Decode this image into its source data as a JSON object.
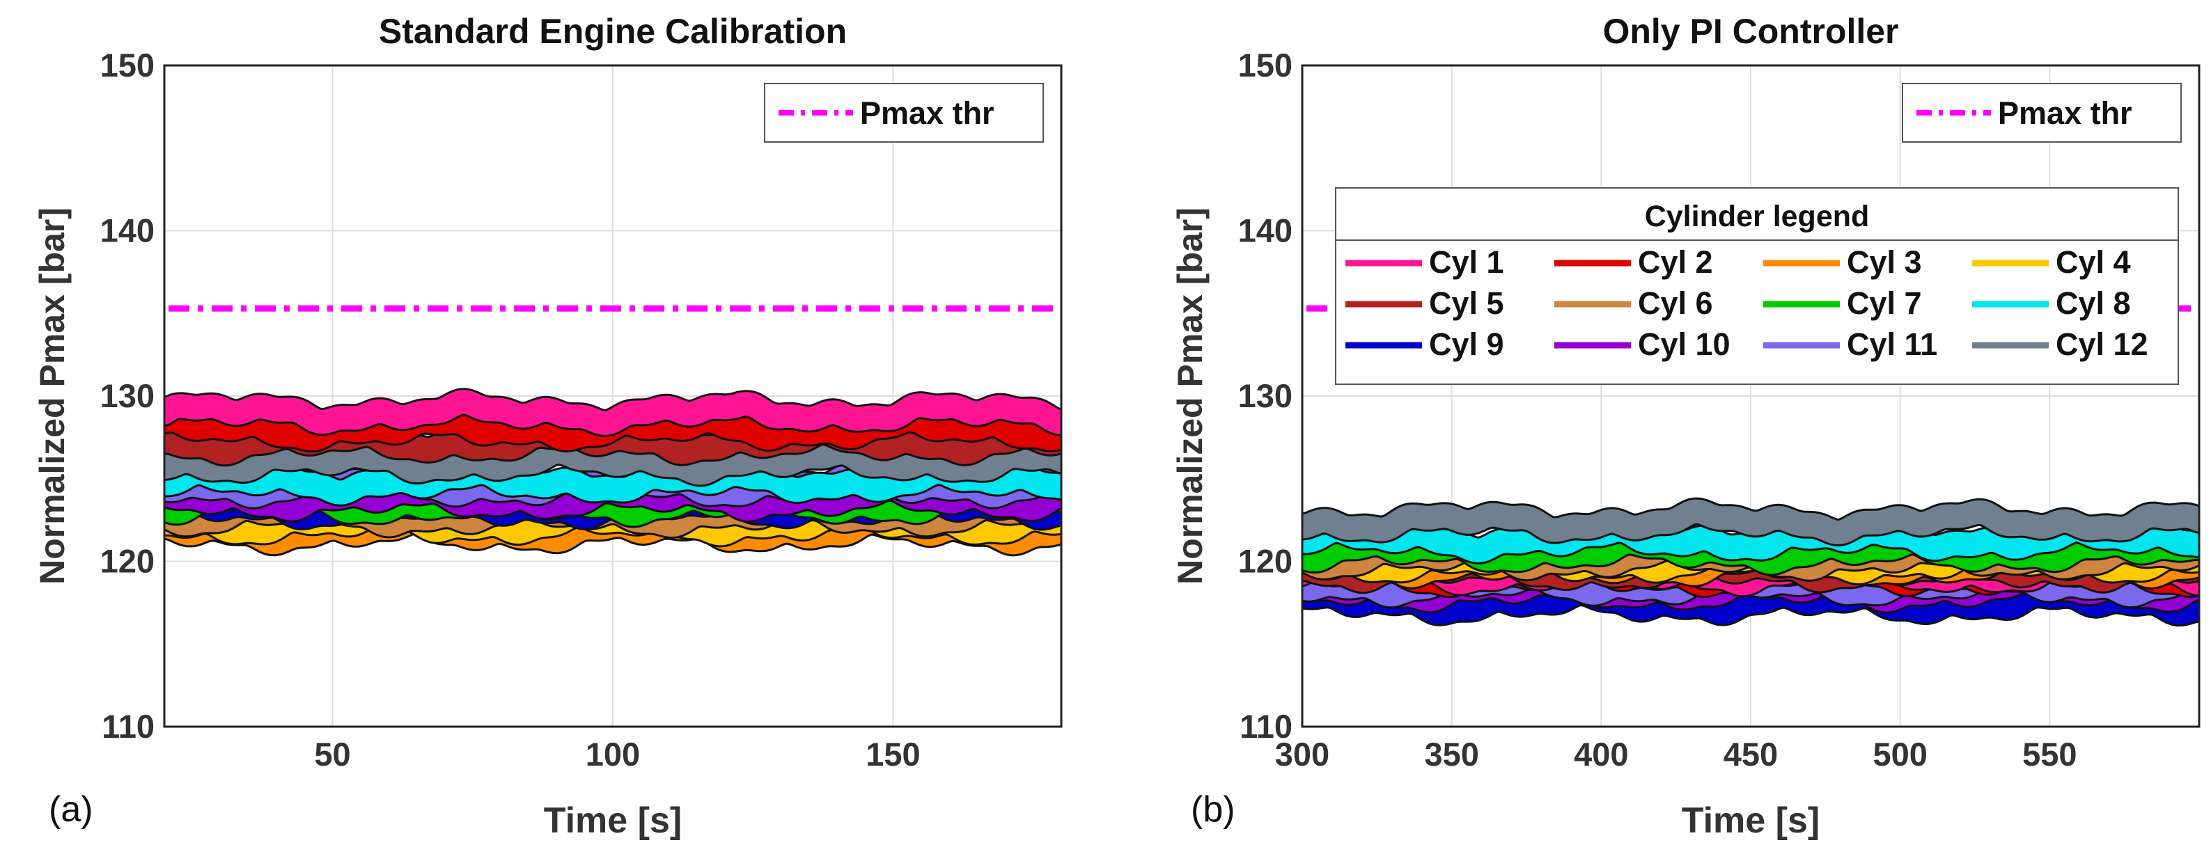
{
  "chart_data": [
    {
      "type": "line",
      "panel_label": "(a)",
      "title": "Standard Engine Calibration",
      "xlabel": "Time [s]",
      "ylabel": "Normalized Pmax [bar]",
      "xlim": [
        20,
        180
      ],
      "ylim": [
        110,
        150
      ],
      "xticks": [
        50,
        100,
        150
      ],
      "yticks": [
        110,
        120,
        130,
        140,
        150
      ],
      "grid": true,
      "threshold": {
        "name": "Pmax thr",
        "value": 135.3,
        "color": "#ff00ff"
      },
      "threshold_legend": "top-right",
      "series": [
        {
          "name": "Cyl 1",
          "color": "#ff1493",
          "base": 129.0
        },
        {
          "name": "Cyl 2",
          "color": "#e00000",
          "base": 128.0
        },
        {
          "name": "Cyl 3",
          "color": "#ff8c00",
          "base": 121.8
        },
        {
          "name": "Cyl 4",
          "color": "#ffc800",
          "base": 122.3
        },
        {
          "name": "Cyl 5",
          "color": "#b22222",
          "base": 127.2
        },
        {
          "name": "Cyl 6",
          "color": "#cd853f",
          "base": 122.8
        },
        {
          "name": "Cyl 7",
          "color": "#00cc00",
          "base": 123.5
        },
        {
          "name": "Cyl 8",
          "color": "#00e5ee",
          "base": 124.8
        },
        {
          "name": "Cyl 9",
          "color": "#0000cd",
          "base": 123.3
        },
        {
          "name": "Cyl 10",
          "color": "#9400d3",
          "base": 123.8
        },
        {
          "name": "Cyl 11",
          "color": "#7b68ee",
          "base": 124.6
        },
        {
          "name": "Cyl 12",
          "color": "#708090",
          "base": 126.0
        }
      ]
    },
    {
      "type": "line",
      "panel_label": "(b)",
      "title": "Only PI Controller",
      "xlabel": "Time [s]",
      "ylabel": "Normalized Pmax [bar]",
      "xlim": [
        300,
        600
      ],
      "ylim": [
        110,
        150
      ],
      "xticks": [
        300,
        350,
        400,
        450,
        500,
        550
      ],
      "yticks": [
        110,
        120,
        130,
        140,
        150
      ],
      "grid": true,
      "threshold": {
        "name": "Pmax thr",
        "value": 135.3,
        "color": "#ff00ff"
      },
      "threshold_legend": "top-right",
      "legend_title": "Cylinder legend",
      "series": [
        {
          "name": "Cyl 1",
          "color": "#ff1493",
          "base": 119.3
        },
        {
          "name": "Cyl 2",
          "color": "#e00000",
          "base": 119.2
        },
        {
          "name": "Cyl 3",
          "color": "#ff8c00",
          "base": 119.8
        },
        {
          "name": "Cyl 4",
          "color": "#ffc800",
          "base": 120.0
        },
        {
          "name": "Cyl 5",
          "color": "#b22222",
          "base": 119.5
        },
        {
          "name": "Cyl 6",
          "color": "#cd853f",
          "base": 120.2
        },
        {
          "name": "Cyl 7",
          "color": "#00cc00",
          "base": 120.6
        },
        {
          "name": "Cyl 8",
          "color": "#00e5ee",
          "base": 121.3
        },
        {
          "name": "Cyl 9",
          "color": "#0000cd",
          "base": 117.5
        },
        {
          "name": "Cyl 10",
          "color": "#9400d3",
          "base": 118.3
        },
        {
          "name": "Cyl 11",
          "color": "#7b68ee",
          "base": 118.6
        },
        {
          "name": "Cyl 12",
          "color": "#708090",
          "base": 122.4
        }
      ]
    }
  ]
}
